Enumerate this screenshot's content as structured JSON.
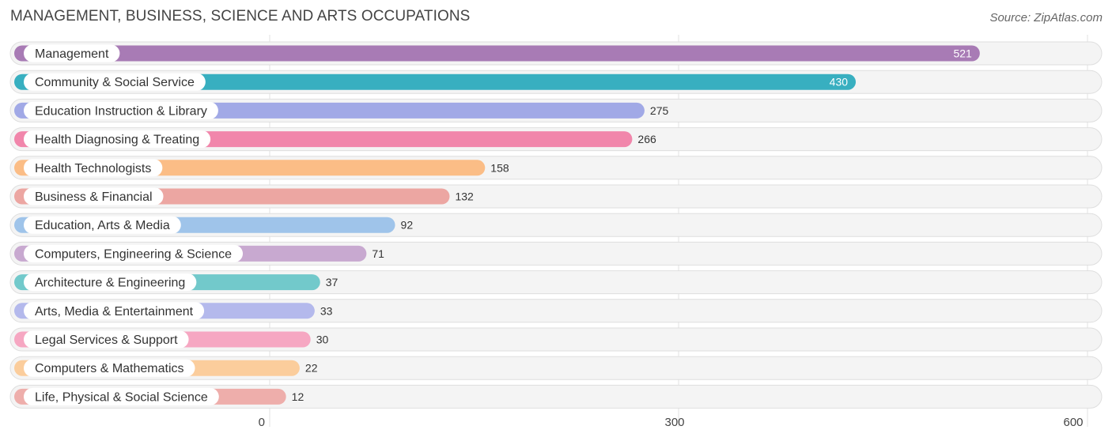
{
  "title": "MANAGEMENT, BUSINESS, SCIENCE AND ARTS OCCUPATIONS",
  "source": "Source: ZipAtlas.com",
  "chart_data": {
    "type": "bar",
    "orientation": "horizontal",
    "title": "MANAGEMENT, BUSINESS, SCIENCE AND ARTS OCCUPATIONS",
    "xlabel": "",
    "ylabel": "",
    "xlim": [
      0,
      600
    ],
    "x_ticks": [
      "0",
      "300",
      "600"
    ],
    "grid": true,
    "categories": [
      "Management",
      "Community & Social Service",
      "Education Instruction & Library",
      "Health Diagnosing & Treating",
      "Health Technologists",
      "Business & Financial",
      "Education, Arts & Media",
      "Computers, Engineering & Science",
      "Architecture & Engineering",
      "Arts, Media & Entertainment",
      "Legal Services & Support",
      "Computers & Mathematics",
      "Life, Physical & Social Science"
    ],
    "values": [
      521,
      430,
      275,
      266,
      158,
      132,
      92,
      71,
      37,
      33,
      30,
      22,
      12
    ],
    "colors": [
      "#a87bb5",
      "#38afc0",
      "#a1a9e6",
      "#f186ab",
      "#fbbd86",
      "#eca6a2",
      "#9fc4ea",
      "#c8a9d0",
      "#72c9cb",
      "#b4b9ec",
      "#f6a7c2",
      "#fbcd9c",
      "#eeaeab"
    ]
  }
}
